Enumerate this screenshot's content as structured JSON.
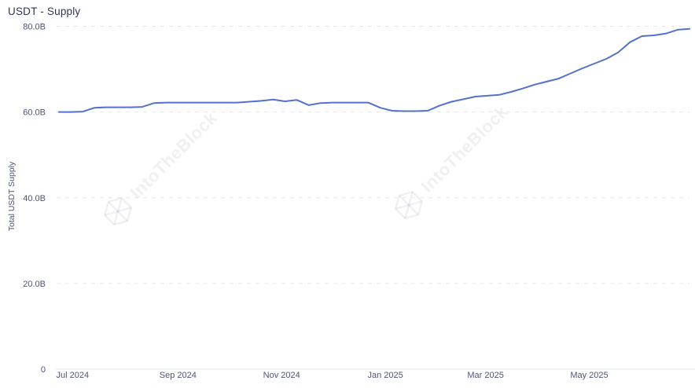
{
  "header": {
    "title": "USDT - Supply"
  },
  "watermark": {
    "text": "IntoTheBlock",
    "logo": "intotheblock-logo-icon"
  },
  "chart_data": {
    "type": "line",
    "title": "USDT - Supply",
    "xlabel": "",
    "ylabel": "Total USDT Supply",
    "ylim": [
      0,
      80
    ],
    "grid": "horizontal-dashed",
    "legend": "none",
    "unit": "B",
    "line_color": "#5271cf",
    "grid_color": "#e5e6ea",
    "axis_color": "#e2e4e8",
    "tick_color": "#4d5576",
    "y_ticks": [
      {
        "value": 80,
        "label": "80.0B"
      },
      {
        "value": 60,
        "label": "60.0B"
      },
      {
        "value": 40,
        "label": "40.0B"
      },
      {
        "value": 20,
        "label": "20.0B"
      },
      {
        "value": 0,
        "label": "0"
      }
    ],
    "x_ticks": [
      {
        "date": "2024-07-01",
        "label": "Jul 2024"
      },
      {
        "date": "2024-09-01",
        "label": "Sep 2024"
      },
      {
        "date": "2024-11-01",
        "label": "Nov 2024"
      },
      {
        "date": "2025-01-01",
        "label": "Jan 2025"
      },
      {
        "date": "2025-03-01",
        "label": "Mar 2025"
      },
      {
        "date": "2025-05-01",
        "label": "May 2025"
      }
    ],
    "x": [
      "2024-06-23",
      "2024-06-30",
      "2024-07-07",
      "2024-07-14",
      "2024-07-21",
      "2024-07-28",
      "2024-08-04",
      "2024-08-11",
      "2024-08-18",
      "2024-08-25",
      "2024-09-01",
      "2024-09-08",
      "2024-09-15",
      "2024-09-22",
      "2024-09-29",
      "2024-10-06",
      "2024-10-13",
      "2024-10-20",
      "2024-10-27",
      "2024-11-03",
      "2024-11-10",
      "2024-11-17",
      "2024-11-24",
      "2024-12-01",
      "2024-12-08",
      "2024-12-15",
      "2024-12-22",
      "2024-12-29",
      "2025-01-05",
      "2025-01-12",
      "2025-01-19",
      "2025-01-26",
      "2025-02-02",
      "2025-02-09",
      "2025-02-16",
      "2025-02-23",
      "2025-03-02",
      "2025-03-09",
      "2025-03-16",
      "2025-03-23",
      "2025-03-30",
      "2025-04-06",
      "2025-04-13",
      "2025-04-20",
      "2025-04-27",
      "2025-05-04",
      "2025-05-11",
      "2025-05-18",
      "2025-05-25",
      "2025-06-01",
      "2025-06-08",
      "2025-06-15",
      "2025-06-22",
      "2025-06-29"
    ],
    "series": [
      {
        "name": "Total USDT Supply",
        "color": "#5271cf",
        "values": [
          60.0,
          60.0,
          60.1,
          61.0,
          61.1,
          61.1,
          61.1,
          61.2,
          62.1,
          62.2,
          62.2,
          62.2,
          62.2,
          62.2,
          62.2,
          62.2,
          62.4,
          62.6,
          62.9,
          62.5,
          62.8,
          61.6,
          62.1,
          62.2,
          62.2,
          62.2,
          62.2,
          61.0,
          60.3,
          60.2,
          60.2,
          60.3,
          61.5,
          62.4,
          63.0,
          63.6,
          63.8,
          64.0,
          64.7,
          65.5,
          66.4,
          67.1,
          67.8,
          69.0,
          70.2,
          71.3,
          72.4,
          73.9,
          76.3,
          77.7,
          77.9,
          78.3,
          79.2,
          79.4
        ]
      }
    ]
  }
}
